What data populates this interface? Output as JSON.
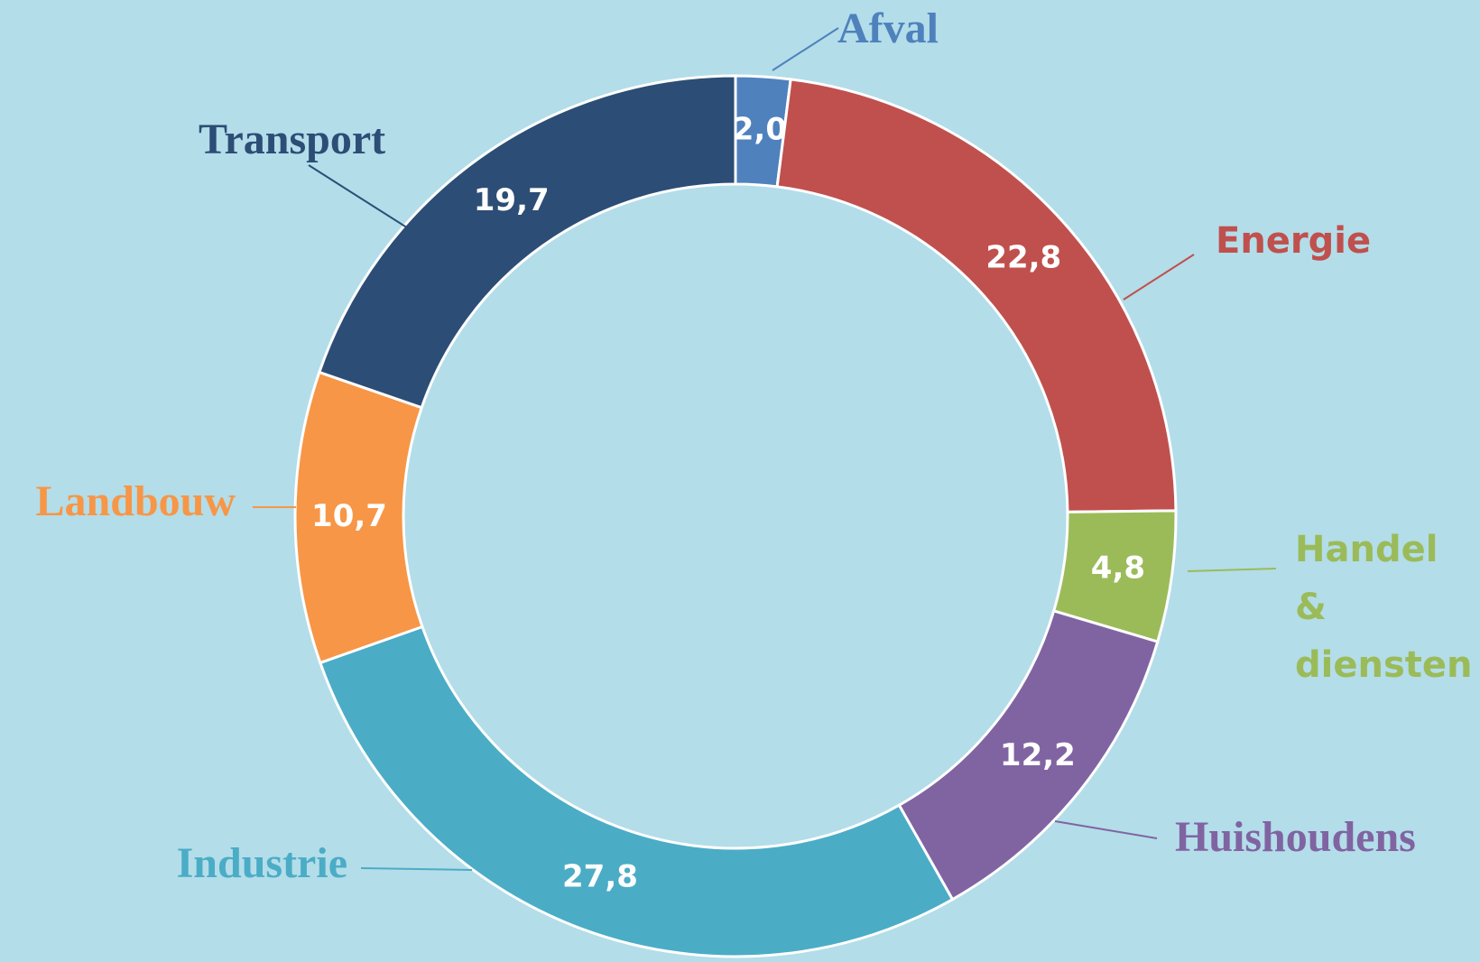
{
  "chart_data": {
    "type": "donut",
    "categories": [
      "Afval",
      "Energie",
      "Handel & diensten",
      "Huishoudens",
      "Industrie",
      "Landbouw",
      "Transport"
    ],
    "values": [
      2.0,
      22.8,
      4.8,
      12.2,
      27.8,
      10.7,
      19.7
    ],
    "value_labels": [
      "2,0",
      "22,8",
      "4,8",
      "12,2",
      "27,8",
      "10,7",
      "19,7"
    ],
    "colors": [
      "#4f81bd",
      "#c0504d",
      "#9bbb59",
      "#8064a2",
      "#4bacc6",
      "#f79646",
      "#2c4d75"
    ]
  }
}
